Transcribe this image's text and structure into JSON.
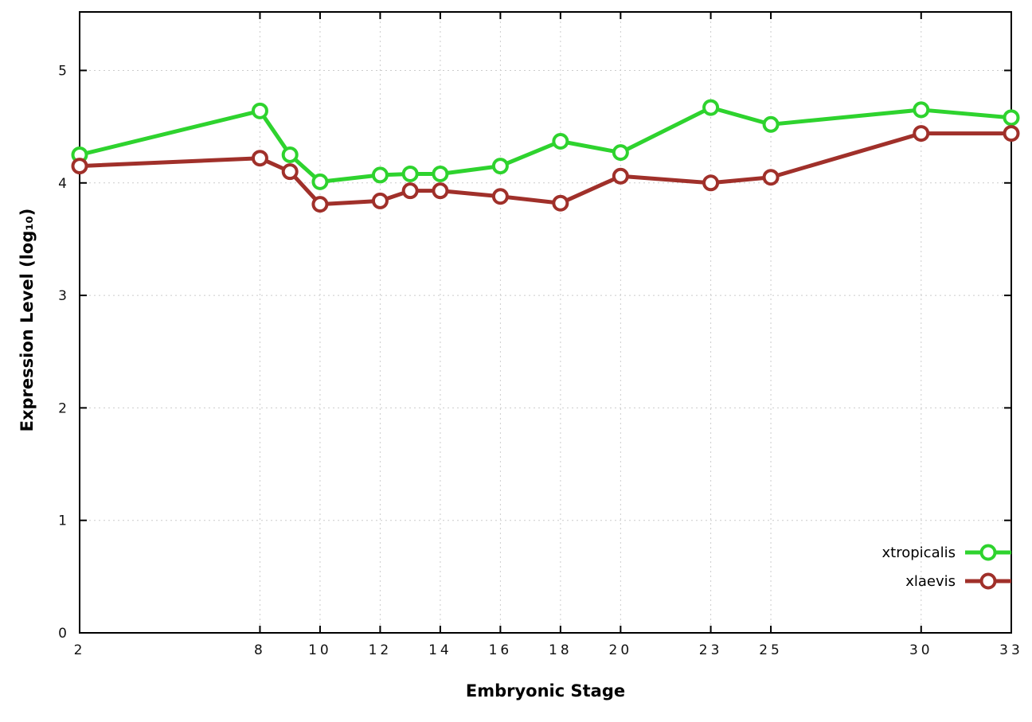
{
  "chart_data": {
    "type": "line",
    "title": "",
    "xlabel": "Embryonic Stage",
    "ylabel": "Expression Level (log₁₀)",
    "x": [
      2,
      8,
      9,
      10,
      12,
      13,
      14,
      16,
      18,
      20,
      23,
      25,
      30,
      33
    ],
    "series": [
      {
        "name": "xtropicalis",
        "color": "#2ed32e",
        "marker": "open-circle",
        "values": [
          4.25,
          4.64,
          4.25,
          4.01,
          4.07,
          4.08,
          4.08,
          4.15,
          4.37,
          4.27,
          4.67,
          4.52,
          4.65,
          4.58
        ]
      },
      {
        "name": "xlaevis",
        "color": "#a0302a",
        "marker": "open-circle",
        "values": [
          4.15,
          4.22,
          4.1,
          3.81,
          3.84,
          3.93,
          3.93,
          3.88,
          3.82,
          4.06,
          4.0,
          4.05,
          4.44,
          4.44
        ]
      }
    ],
    "xticks": [
      2,
      8,
      10,
      12,
      14,
      16,
      18,
      20,
      23,
      25,
      30,
      33
    ],
    "yticks": [
      0,
      1,
      2,
      3,
      4,
      5
    ],
    "xlim": [
      2,
      33
    ],
    "ylim": [
      0,
      5.52
    ],
    "grid": true,
    "grid_color": "#cccccc",
    "axis_color": "#000000",
    "background": "#ffffff",
    "legend_position": "inside-bottom-right"
  }
}
